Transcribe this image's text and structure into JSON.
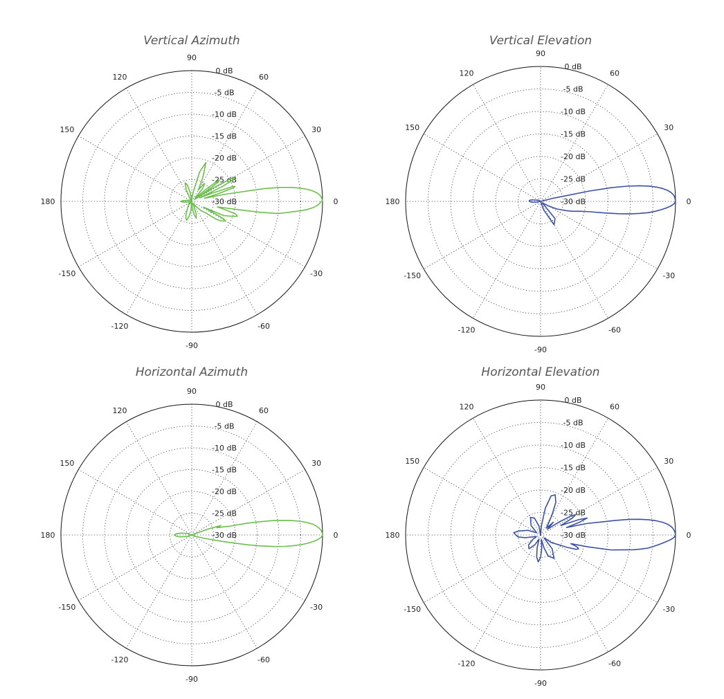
{
  "chart_data": [
    {
      "type": "polar",
      "title": "Vertical Azimuth",
      "color": "#6abf4b",
      "angle_ticks": [
        0,
        30,
        60,
        90,
        120,
        150,
        180,
        -150,
        -120,
        -90,
        -60,
        -30
      ],
      "radial_ticks": [
        "0 dB",
        "-5 dB",
        "-10 dB",
        "-15 dB",
        "-20 dB",
        "-25 dB",
        "-30 dB"
      ],
      "radial_range_db": [
        -30,
        0
      ],
      "series": [
        {
          "theta": [
            0,
            1,
            2,
            3,
            4,
            5,
            6,
            7,
            8,
            9,
            10,
            12,
            14,
            16,
            18,
            19,
            20,
            22,
            24,
            26,
            28,
            29,
            30,
            32,
            34,
            35,
            36,
            38,
            40,
            45,
            50,
            55,
            60,
            65,
            70,
            75,
            80,
            85,
            90,
            95,
            100,
            105,
            110,
            115,
            120,
            135,
            150,
            165,
            175,
            180,
            185,
            195,
            210,
            225,
            240,
            245,
            250,
            255,
            260,
            265,
            270,
            275,
            280,
            285,
            290,
            300,
            310,
            315,
            320,
            322,
            324,
            326,
            328,
            330,
            331,
            332,
            334,
            336,
            340,
            342,
            344,
            346,
            348,
            350,
            351,
            352,
            353,
            354,
            355,
            356,
            357,
            358,
            359,
            360
          ],
          "r": [
            0,
            -0.1,
            -0.3,
            -0.7,
            -1.3,
            -2.2,
            -3.4,
            -5,
            -7,
            -9.5,
            -13,
            -22,
            -27,
            -24,
            -20,
            -19.5,
            -20,
            -25,
            -28,
            -22,
            -19,
            -18.8,
            -19,
            -24,
            -29,
            -26,
            -22.5,
            -22,
            -25,
            -29,
            -26,
            -25,
            -27,
            -24,
            -20.5,
            -23,
            -27.5,
            -29,
            -30,
            -29.5,
            -28,
            -26,
            -25.5,
            -27,
            -29,
            -30,
            -29.5,
            -29,
            -28,
            -27.5,
            -28,
            -29.5,
            -30,
            -29,
            -28,
            -27,
            -26,
            -25.5,
            -26.5,
            -28,
            -30,
            -28.5,
            -27,
            -26,
            -27,
            -29.5,
            -28.5,
            -27,
            -26,
            -25,
            -23,
            -22,
            -21.5,
            -21,
            -21.5,
            -23,
            -27,
            -22,
            -20,
            -19,
            -19.5,
            -22,
            -24,
            -19,
            -14,
            -10,
            -8.5,
            -7,
            -5,
            -3.4,
            -2.2,
            -1.3,
            -0.7,
            -0.3,
            -0.1,
            0
          ]
        }
      ]
    },
    {
      "type": "polar",
      "title": "Vertical Elevation",
      "color": "#3a4fa6",
      "angle_ticks": [
        0,
        30,
        60,
        90,
        120,
        150,
        180,
        -150,
        -120,
        -90,
        -60,
        -30
      ],
      "radial_ticks": [
        "0 dB",
        "-5 dB",
        "-10 dB",
        "-15 dB",
        "-20 dB",
        "-25 dB",
        "-30 dB"
      ],
      "radial_range_db": [
        -30,
        0
      ],
      "series": [
        {
          "theta": [
            0,
            1,
            2,
            3,
            4,
            5,
            6,
            7,
            8,
            9,
            10,
            11,
            12,
            14,
            16,
            20,
            25,
            30,
            40,
            60,
            80,
            100,
            120,
            150,
            170,
            175,
            180,
            185,
            190,
            210,
            240,
            260,
            270,
            280,
            290,
            300,
            310,
            320,
            330,
            335,
            340,
            342,
            344,
            346,
            348,
            350,
            351,
            352,
            353,
            354,
            355,
            356,
            357,
            358,
            359,
            360
          ],
          "r": [
            0,
            -0.1,
            -0.2,
            -0.5,
            -1,
            -1.7,
            -2.7,
            -4,
            -5.6,
            -7.8,
            -10.5,
            -14,
            -19,
            -27,
            -30,
            -30,
            -30,
            -30,
            -30,
            -30,
            -30,
            -30,
            -30,
            -29.5,
            -28,
            -27.5,
            -27.5,
            -28,
            -29,
            -30,
            -30,
            -30,
            -30,
            -30,
            -28,
            -24,
            -25,
            -29.5,
            -28,
            -26,
            -24,
            -23,
            -22,
            -21,
            -19,
            -15,
            -12.5,
            -10,
            -8,
            -6,
            -4.5,
            -3.2,
            -2,
            -1,
            -0.3,
            0
          ]
        }
      ]
    },
    {
      "type": "polar",
      "title": "Horizontal Azimuth",
      "color": "#6abf4b",
      "angle_ticks": [
        0,
        30,
        60,
        90,
        120,
        150,
        180,
        -150,
        -120,
        -90,
        -60,
        -30
      ],
      "radial_ticks": [
        "0 dB",
        "-5 dB",
        "-10 dB",
        "-15 dB",
        "-20 dB",
        "-25 dB",
        "-30 dB"
      ],
      "radial_range_db": [
        -30,
        0
      ],
      "series": [
        {
          "theta": [
            0,
            1,
            2,
            3,
            4,
            5,
            6,
            7,
            8,
            9,
            10,
            11,
            12,
            13,
            14,
            16,
            18,
            20,
            25,
            30,
            45,
            60,
            90,
            120,
            150,
            160,
            170,
            175,
            180,
            185,
            190,
            200,
            210,
            240,
            270,
            300,
            330,
            340,
            345,
            348,
            350,
            351,
            352,
            353,
            354,
            355,
            356,
            357,
            358,
            359,
            360
          ],
          "r": [
            0,
            -0.1,
            -0.3,
            -0.7,
            -1.3,
            -2,
            -3.2,
            -4.6,
            -6.4,
            -8.6,
            -11,
            -14,
            -17,
            -21,
            -22,
            -24,
            -23,
            -26,
            -30,
            -30,
            -30,
            -30,
            -30,
            -30,
            -30,
            -29,
            -27.5,
            -26.5,
            -26,
            -26.5,
            -27.5,
            -29,
            -30,
            -30,
            -30,
            -30,
            -30,
            -29,
            -27,
            -23,
            -17,
            -14,
            -11,
            -8.5,
            -6.5,
            -4.7,
            -3.2,
            -2,
            -1,
            -0.3,
            0
          ]
        }
      ]
    },
    {
      "type": "polar",
      "title": "Horizontal Elevation",
      "color": "#3a4fa6",
      "angle_ticks": [
        0,
        30,
        60,
        90,
        120,
        150,
        180,
        -150,
        -120,
        -90,
        -60,
        -30
      ],
      "radial_ticks": [
        "0 dB",
        "-5 dB",
        "-10 dB",
        "-15 dB",
        "-20 dB",
        "-25 dB",
        "-30 dB"
      ],
      "radial_range_db": [
        -30,
        0
      ],
      "series": [
        {
          "theta": [
            0,
            1,
            2,
            3,
            4,
            5,
            6,
            7,
            8,
            9,
            10,
            11,
            12,
            14,
            16,
            18,
            20,
            22,
            25,
            28,
            30,
            32,
            35,
            40,
            45,
            50,
            60,
            65,
            70,
            75,
            80,
            85,
            90,
            100,
            110,
            120,
            135,
            150,
            160,
            170,
            175,
            180,
            185,
            190,
            200,
            210,
            220,
            230,
            240,
            250,
            255,
            260,
            265,
            270,
            275,
            280,
            285,
            290,
            300,
            310,
            320,
            325,
            330,
            335,
            338,
            340,
            342,
            344,
            346,
            348,
            350,
            351,
            352,
            353,
            354,
            355,
            356,
            357,
            358,
            359,
            360
          ],
          "r": [
            0,
            -0.1,
            -0.3,
            -0.6,
            -1.1,
            -1.8,
            -2.8,
            -4.1,
            -5.7,
            -7.7,
            -10,
            -13,
            -16,
            -19.5,
            -24,
            -21,
            -19,
            -21,
            -25,
            -22,
            -21,
            -22,
            -25,
            -28,
            -26,
            -28,
            -25,
            -22,
            -20.5,
            -21,
            -24,
            -28,
            -30,
            -28,
            -26,
            -25.5,
            -27,
            -29,
            -27,
            -25,
            -24,
            -24.5,
            -25,
            -26.5,
            -29,
            -28,
            -26.5,
            -26,
            -27.5,
            -29,
            -27,
            -25,
            -24,
            -25,
            -27,
            -29,
            -27,
            -25,
            -24,
            -26,
            -29,
            -27,
            -26,
            -23.5,
            -21.5,
            -21,
            -21.5,
            -23,
            -19,
            -14,
            -11,
            -9,
            -7.5,
            -6,
            -5,
            -4,
            -3,
            -2,
            -1,
            -0.3,
            0
          ]
        }
      ]
    }
  ]
}
